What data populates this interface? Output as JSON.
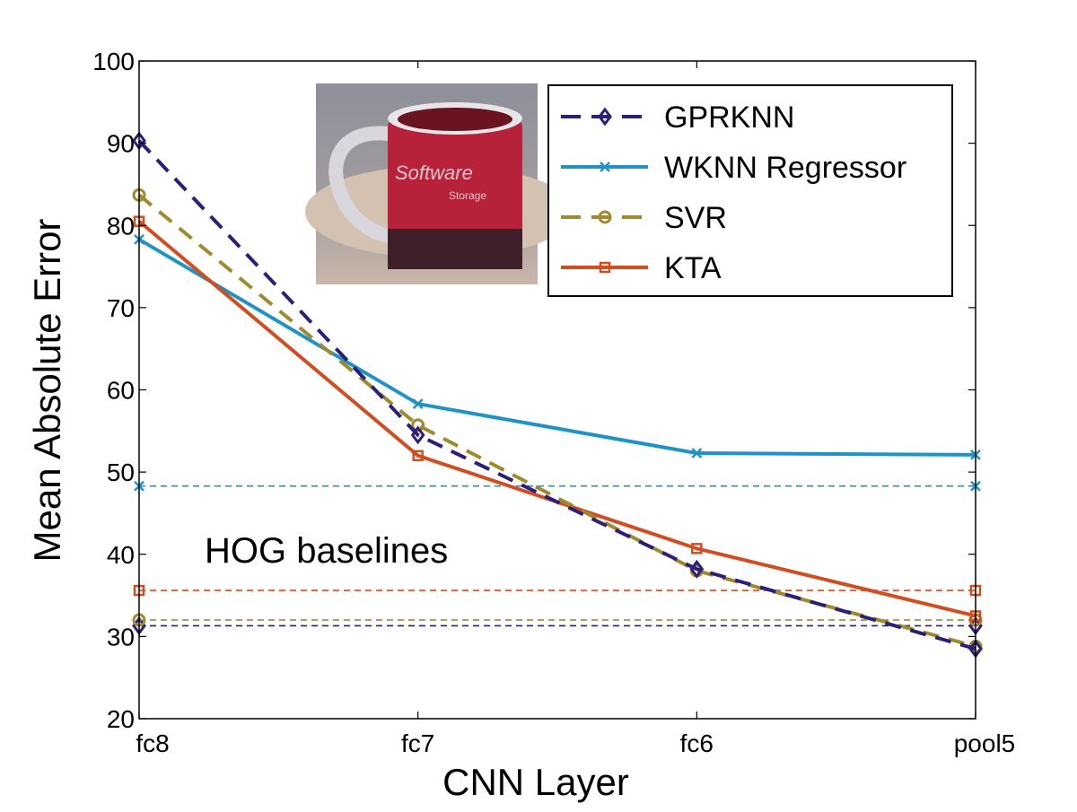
{
  "chart_data": {
    "type": "line",
    "xlabel": "CNN Layer",
    "ylabel": "Mean Absolute Error",
    "categories": [
      "fc8",
      "fc7",
      "fc6",
      "pool5"
    ],
    "ylim": [
      20,
      100
    ],
    "yticks": [
      20,
      30,
      40,
      50,
      60,
      70,
      80,
      90,
      100
    ],
    "grid": false,
    "legend_position": "top-right",
    "annotation": "HOG baselines",
    "inset_image": "red coffee mug reading Software Storage",
    "series": [
      {
        "name": "GPRKNN",
        "values": [
          90.3,
          54.5,
          38.2,
          28.5
        ],
        "color": "#2b1f7a",
        "dash": "dashed",
        "marker": "diamond",
        "baseline": 31.3
      },
      {
        "name": "WKNN Regressor",
        "values": [
          78.3,
          58.3,
          52.3,
          52.1
        ],
        "color": "#1f93c8",
        "dash": "solid",
        "marker": "x",
        "baseline": 48.3
      },
      {
        "name": "SVR",
        "values": [
          83.7,
          55.7,
          38.0,
          28.8
        ],
        "color": "#a08a2e",
        "dash": "dashed",
        "marker": "circle",
        "baseline": 32.0
      },
      {
        "name": "KTA",
        "values": [
          80.5,
          52.0,
          40.7,
          32.5
        ],
        "color": "#d24d1f",
        "dash": "solid",
        "marker": "square",
        "baseline": 35.6
      }
    ]
  }
}
